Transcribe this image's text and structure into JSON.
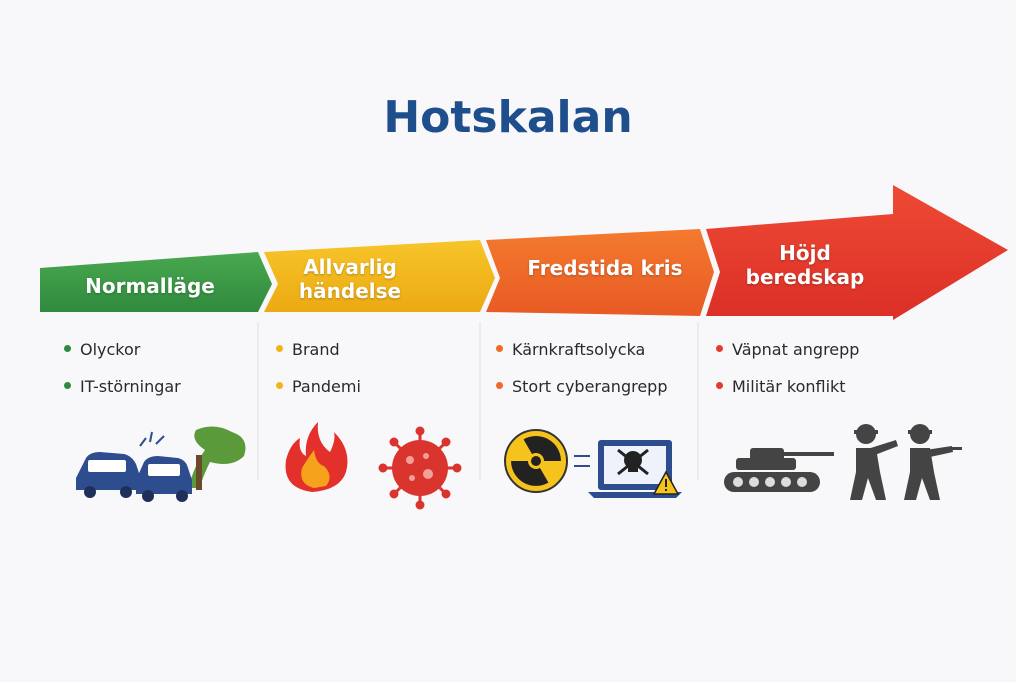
{
  "title": "Hotskalan",
  "stages": [
    {
      "label": "Normalläge",
      "items": [
        "Olyckor",
        "IT-störningar"
      ]
    },
    {
      "label": "Allvarlig händelse",
      "items": [
        "Brand",
        "Pandemi"
      ]
    },
    {
      "label": "Fredstida kris",
      "items": [
        "Kärnkraftsolycka",
        "Stort cyberangrepp"
      ]
    },
    {
      "label": "Höjd beredskap",
      "items": [
        "Väpnat angrepp",
        "Militär konflikt"
      ]
    }
  ]
}
